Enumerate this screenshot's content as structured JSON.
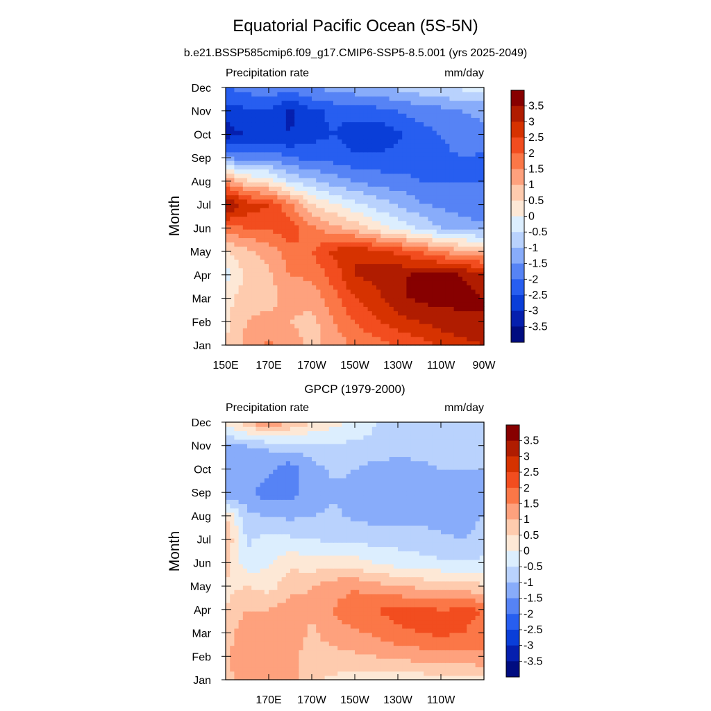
{
  "figure": {
    "title": "Equatorial Pacific Ocean (5S-5N)",
    "subtitle": "b.e21.BSSP585cmip6.f09_g17.CMIP6-SSP5-8.5.001 (yrs 2025-2049)"
  },
  "colorbar": {
    "labels": [
      "3.5",
      "3",
      "2.5",
      "2",
      "1.5",
      "1",
      "0.5",
      "0",
      "-0.5",
      "-1",
      "-1.5",
      "-2",
      "-2.5",
      "-3",
      "-3.5"
    ],
    "colors": [
      "#870000",
      "#b01c00",
      "#d63200",
      "#f24d1f",
      "#fb7747",
      "#fea17d",
      "#fecbae",
      "#fde8d6",
      "#dceefe",
      "#b9d2fd",
      "#88acfa",
      "#5683f5",
      "#275ef0",
      "#0a3ed8",
      "#051fae",
      "#000c80"
    ]
  },
  "chart_data": [
    {
      "type": "heatmap",
      "title": "",
      "center_title": "",
      "left_label": "Precipitation rate",
      "right_label": "mm/day",
      "ylabel": "Month",
      "xlabel": "",
      "xlim": [
        150,
        270
      ],
      "x_ticks": [
        {
          "lon": 150,
          "label": "150E"
        },
        {
          "lon": 170,
          "label": "170E"
        },
        {
          "lon": 190,
          "label": "170W"
        },
        {
          "lon": 210,
          "label": "150W"
        },
        {
          "lon": 230,
          "label": "130W"
        },
        {
          "lon": 250,
          "label": "110W"
        },
        {
          "lon": 270,
          "label": "90W"
        }
      ],
      "y_ticks": [
        "Jan",
        "Feb",
        "Mar",
        "Apr",
        "May",
        "Jun",
        "Jul",
        "Aug",
        "Sep",
        "Oct",
        "Nov",
        "Dec"
      ],
      "x": [
        150,
        160,
        170,
        180,
        190,
        200,
        210,
        220,
        230,
        240,
        250,
        260,
        270
      ],
      "y": [
        "Jan",
        "Feb",
        "Mar",
        "Apr",
        "May",
        "Jun",
        "Jul",
        "Aug",
        "Sep",
        "Oct",
        "Nov",
        "Dec"
      ],
      "z": [
        [
          0.5,
          1.2,
          1.6,
          1.3,
          0.8,
          1.2,
          1.6,
          1.8,
          2.0,
          2.2,
          2.6,
          2.8,
          3.0
        ],
        [
          0.4,
          1.0,
          1.2,
          1.0,
          0.8,
          1.5,
          2.0,
          2.4,
          2.8,
          3.0,
          3.2,
          3.4,
          3.5
        ],
        [
          0.3,
          0.8,
          0.8,
          1.2,
          1.2,
          1.8,
          2.5,
          2.8,
          3.4,
          3.6,
          3.7,
          3.6,
          3.5
        ],
        [
          -0.2,
          0.6,
          0.9,
          1.5,
          1.6,
          2.2,
          3.0,
          3.2,
          3.4,
          3.6,
          3.7,
          3.5,
          3.3
        ],
        [
          0.4,
          0.9,
          1.2,
          1.8,
          2.0,
          2.6,
          3.0,
          2.7,
          2.4,
          2.0,
          1.5,
          1.2,
          1.0
        ],
        [
          1.8,
          2.0,
          2.0,
          2.4,
          1.6,
          1.2,
          0.8,
          0.3,
          -0.2,
          -0.5,
          -1.0,
          -1.2,
          -1.3
        ],
        [
          3.6,
          2.8,
          2.5,
          1.6,
          0.6,
          0.1,
          -0.3,
          -0.7,
          -1.0,
          -1.4,
          -1.6,
          -1.8,
          -2.0
        ],
        [
          1.5,
          0.6,
          0.3,
          -0.5,
          -0.9,
          -1.2,
          -1.5,
          -1.7,
          -1.8,
          -2.0,
          -2.0,
          -2.0,
          -2.0
        ],
        [
          -1.5,
          -1.7,
          -1.6,
          -2.0,
          -2.1,
          -2.2,
          -2.4,
          -2.4,
          -2.3,
          -2.3,
          -2.1,
          -2.0,
          -2.1
        ],
        [
          -3.2,
          -3.0,
          -2.9,
          -3.0,
          -2.7,
          -2.5,
          -2.8,
          -2.9,
          -2.6,
          -2.2,
          -2.0,
          -1.8,
          -1.6
        ],
        [
          -2.8,
          -2.6,
          -2.6,
          -3.1,
          -2.6,
          -2.4,
          -2.3,
          -2.2,
          -2.0,
          -1.8,
          -1.7,
          -1.5,
          -1.4
        ],
        [
          -2.0,
          -1.8,
          -1.6,
          -1.8,
          -1.5,
          -1.3,
          -1.2,
          -1.1,
          -0.9,
          -0.7,
          -0.5,
          -0.4,
          -0.3
        ]
      ]
    },
    {
      "type": "heatmap",
      "title": "",
      "center_title": "GPCP (1979-2000)",
      "left_label": "Precipitation rate",
      "right_label": "mm/day",
      "ylabel": "Month",
      "xlabel": "",
      "xlim": [
        150,
        270
      ],
      "x_ticks": [
        {
          "lon": 170,
          "label": "170E"
        },
        {
          "lon": 190,
          "label": "170W"
        },
        {
          "lon": 210,
          "label": "150W"
        },
        {
          "lon": 230,
          "label": "130W"
        },
        {
          "lon": 250,
          "label": "110W"
        }
      ],
      "y_ticks": [
        "Jan",
        "Feb",
        "Mar",
        "Apr",
        "May",
        "Jun",
        "Jul",
        "Aug",
        "Sep",
        "Oct",
        "Nov",
        "Dec"
      ],
      "x": [
        150,
        160,
        170,
        180,
        190,
        200,
        210,
        220,
        230,
        240,
        250,
        260,
        270
      ],
      "y": [
        "Jan",
        "Feb",
        "Mar",
        "Apr",
        "May",
        "Jun",
        "Jul",
        "Aug",
        "Sep",
        "Oct",
        "Nov",
        "Dec"
      ],
      "z": [
        [
          0.9,
          1.2,
          1.4,
          1.2,
          0.6,
          0.4,
          0.3,
          0.3,
          0.2,
          0.2,
          0.3,
          0.3,
          0.4
        ],
        [
          0.9,
          1.3,
          1.5,
          1.2,
          0.7,
          0.8,
          0.9,
          1.0,
          1.1,
          1.2,
          1.3,
          1.3,
          1.4
        ],
        [
          0.8,
          1.4,
          1.2,
          1.3,
          0.9,
          1.3,
          1.4,
          1.6,
          1.9,
          2.0,
          2.1,
          2.0,
          1.9
        ],
        [
          0.5,
          1.0,
          1.0,
          1.3,
          1.1,
          1.5,
          1.9,
          2.0,
          2.2,
          2.2,
          2.0,
          2.1,
          2.0
        ],
        [
          0.4,
          0.5,
          0.3,
          0.8,
          1.0,
          1.3,
          1.4,
          1.2,
          1.0,
          0.9,
          0.8,
          0.7,
          0.6
        ],
        [
          0.7,
          -0.3,
          -0.1,
          0.4,
          0.2,
          0.3,
          0.2,
          0.0,
          -0.2,
          -0.3,
          -0.4,
          -0.4,
          -0.4
        ],
        [
          1.0,
          -0.6,
          -0.3,
          -0.4,
          -0.5,
          -0.6,
          -0.6,
          -0.7,
          -0.7,
          -0.8,
          -0.9,
          -1.0,
          -0.8
        ],
        [
          0.6,
          -0.9,
          -1.0,
          -1.1,
          -1.0,
          -0.9,
          -1.1,
          -1.2,
          -1.2,
          -1.1,
          -1.2,
          -1.2,
          -1.0
        ],
        [
          -1.5,
          -1.3,
          -1.8,
          -1.7,
          -1.3,
          -1.1,
          -1.1,
          -1.4,
          -1.3,
          -1.2,
          -1.2,
          -1.3,
          -1.1
        ],
        [
          -1.2,
          -1.2,
          -1.4,
          -1.8,
          -1.2,
          -0.9,
          -1.0,
          -1.2,
          -1.3,
          -1.2,
          -1.0,
          -1.0,
          -1.0
        ],
        [
          -1.1,
          -1.0,
          -0.9,
          -0.8,
          -0.7,
          -0.6,
          -0.6,
          -0.6,
          -0.7,
          -0.7,
          -0.7,
          -0.7,
          -0.7
        ],
        [
          0.2,
          0.8,
          1.6,
          1.0,
          0.5,
          0.2,
          -0.2,
          -0.5,
          -0.6,
          -0.7,
          -0.7,
          -0.7,
          -0.6
        ]
      ]
    }
  ]
}
